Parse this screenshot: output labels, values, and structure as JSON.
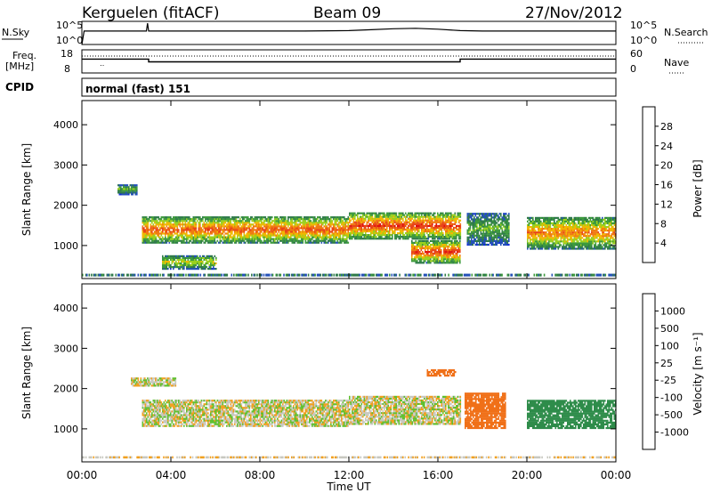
{
  "header": {
    "station": "Kerguelen (fitACF)",
    "beam": "Beam 09",
    "date": "27/Nov/2012"
  },
  "strip_labels": {
    "nsky": "N.Sky",
    "nsearch": "N.Search",
    "freq_line1": "Freq.",
    "freq_line2": "[MHz]",
    "nave": "Nave",
    "cpid": "CPID",
    "cpid_value": "normal (fast) 151"
  },
  "colors": {
    "power_scale": [
      "#1530d8",
      "#2451b8",
      "#2f7a4a",
      "#3d9a3d",
      "#9ad01e",
      "#f1b800",
      "#f07a12",
      "#e8451a",
      "#e01010"
    ],
    "velocity_scale": [
      "#ee1010",
      "#f03a12",
      "#f07018",
      "#f0a020",
      "#c8c8c0",
      "#c8c8c0",
      "#60c030",
      "#2e8c4a",
      "#206090",
      "#1a3db8"
    ]
  },
  "chart_data": [
    {
      "type": "line",
      "name": "nsky-panel",
      "ylabel": "N.Sky",
      "y_right_label": "N.Search",
      "y_ticks_left": [
        "10^5",
        "10^0"
      ],
      "y_ticks_right": [
        "10^5",
        "10^0"
      ],
      "x_range": [
        0,
        24
      ],
      "y_range": [
        0,
        5
      ],
      "y_scale": "log",
      "series": [
        {
          "x": [
            0,
            0.1,
            2.9,
            2.95,
            3.0,
            4,
            6,
            8,
            10,
            12,
            13,
            14,
            15,
            16,
            17,
            18,
            20,
            22,
            24
          ],
          "values": [
            0,
            2.9,
            2.9,
            4.6,
            2.9,
            2.9,
            2.9,
            2.9,
            2.9,
            3.0,
            3.2,
            3.4,
            3.5,
            3.3,
            3.0,
            2.9,
            2.9,
            2.9,
            2.9
          ]
        }
      ]
    },
    {
      "type": "line",
      "name": "frequency-panel",
      "ylabel": "Freq. [MHz]",
      "y_right_label": "Nave",
      "y_ticks_left": [
        "18",
        "8"
      ],
      "y_ticks_right": [
        "60",
        "0"
      ],
      "x_range": [
        0,
        24
      ],
      "y_range": [
        8,
        18
      ],
      "series": [
        {
          "x": [
            0,
            3.0,
            3.0,
            17.0,
            17.0,
            24
          ],
          "values": [
            14.0,
            14.0,
            12.8,
            12.8,
            14.0,
            14.0
          ]
        }
      ]
    },
    {
      "type": "heatmap",
      "name": "power-panel",
      "xlabel": "",
      "ylabel": "Slant Range [km]",
      "x_range": [
        0,
        24
      ],
      "y_range": [
        180,
        4600
      ],
      "y_ticks": [
        1000,
        2000,
        3000,
        4000
      ],
      "colorbar_label": "Power [dB]",
      "colorbar_ticks": [
        4,
        8,
        12,
        16,
        20,
        24,
        28
      ],
      "colorbar_range": [
        0,
        32
      ],
      "bands": [
        {
          "x0": 2.7,
          "x1": 12.0,
          "y_lower": 1050,
          "y_upper": 1700,
          "peak_db": 26
        },
        {
          "x0": 12.0,
          "x1": 17.0,
          "y_lower": 1150,
          "y_upper": 1800,
          "peak_db": 28
        },
        {
          "x0": 14.8,
          "x1": 17.0,
          "y_lower": 550,
          "y_upper": 1100,
          "peak_db": 28
        },
        {
          "x0": 1.6,
          "x1": 2.5,
          "y_lower": 2250,
          "y_upper": 2500,
          "peak_db": 14
        },
        {
          "x0": 3.6,
          "x1": 6.0,
          "y_lower": 400,
          "y_upper": 750,
          "peak_db": 18
        },
        {
          "x0": 17.3,
          "x1": 19.2,
          "y_lower": 1000,
          "y_upper": 1800,
          "peak_db": 14
        },
        {
          "x0": 20.0,
          "x1": 24.0,
          "y_lower": 900,
          "y_upper": 1700,
          "peak_db": 24
        }
      ]
    },
    {
      "type": "heatmap",
      "name": "velocity-panel",
      "xlabel": "Time UT",
      "ylabel": "Slant Range [km]",
      "x_range": [
        0,
        24
      ],
      "x_ticks": [
        "00:00",
        "04:00",
        "08:00",
        "12:00",
        "16:00",
        "20:00",
        "00:00"
      ],
      "y_range": [
        180,
        4600
      ],
      "y_ticks": [
        1000,
        2000,
        3000,
        4000
      ],
      "colorbar_label": "Velocity [m s⁻¹]",
      "colorbar_ticks": [
        -1000,
        -500,
        -100,
        -25,
        25,
        100,
        500,
        1000
      ],
      "bands": [
        {
          "x0": 2.7,
          "x1": 12.0,
          "y_lower": 1050,
          "y_upper": 1700,
          "velocity": 0
        },
        {
          "x0": 12.0,
          "x1": 17.0,
          "y_lower": 1100,
          "y_upper": 1800,
          "velocity": 0
        },
        {
          "x0": 2.2,
          "x1": 4.2,
          "y_lower": 2050,
          "y_upper": 2250,
          "velocity": 0
        },
        {
          "x0": 15.5,
          "x1": 16.8,
          "y_lower": 2300,
          "y_upper": 2450,
          "velocity": -200
        },
        {
          "x0": 17.2,
          "x1": 19.0,
          "y_lower": 1000,
          "y_upper": 1900,
          "velocity": -300
        },
        {
          "x0": 20.0,
          "x1": 24.0,
          "y_lower": 1000,
          "y_upper": 1700,
          "velocity": 400
        }
      ]
    }
  ]
}
